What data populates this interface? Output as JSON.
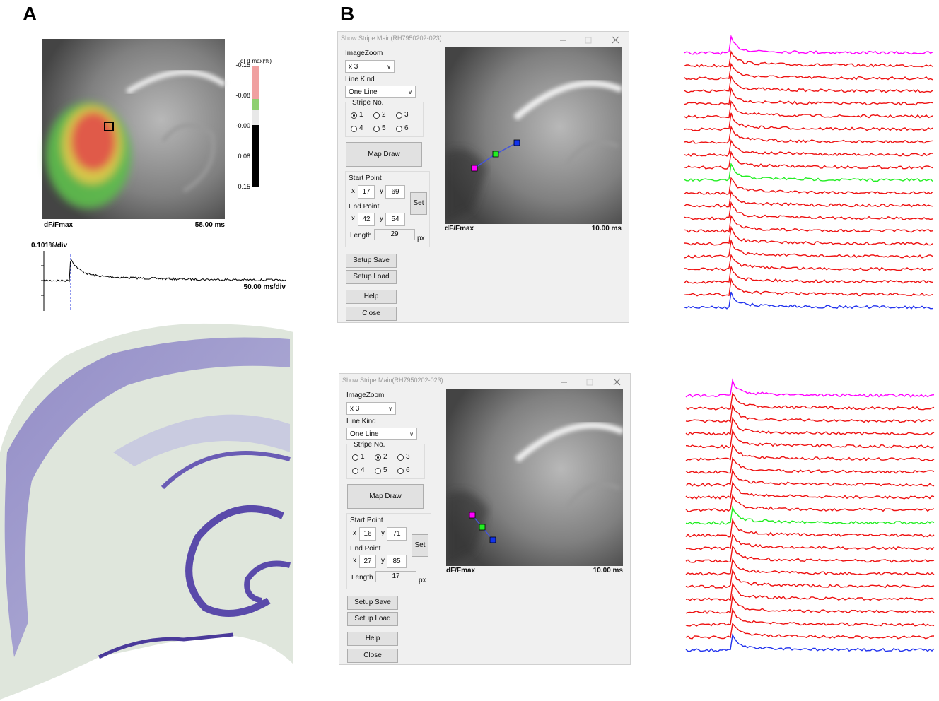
{
  "panel_a": {
    "label": "A",
    "colorbar": {
      "title": "dF/Fmax(%)",
      "ticks": [
        "-0.15",
        "-0.08",
        "-0.00",
        "0.08",
        "0.15"
      ]
    },
    "map": {
      "left": "dF/Fmax",
      "right": "58.00 ms"
    },
    "trace": {
      "scale": "0.101%/div",
      "time": "50.00 ms/div"
    }
  },
  "panel_b": {
    "label": "B",
    "windows": [
      {
        "title": "Show Stripe Main(RH7950202-023)",
        "image_zoom_label": "ImageZoom",
        "image_zoom": "x 3",
        "line_kind_label": "Line Kind",
        "line_kind": "One Line",
        "stripe_label": "Stripe No.",
        "stripes": [
          {
            "label": "1",
            "checked": true
          },
          {
            "label": "2",
            "checked": false
          },
          {
            "label": "3",
            "checked": false
          },
          {
            "label": "4",
            "checked": false
          },
          {
            "label": "5",
            "checked": false
          },
          {
            "label": "6",
            "checked": false
          }
        ],
        "map_draw": "Map Draw",
        "start_label": "Start Point",
        "start_x": "17",
        "start_y": "69",
        "end_label": "End Point",
        "end_x": "42",
        "end_y": "54",
        "x_label": "x",
        "y_label": "y",
        "set": "Set",
        "length_label": "Length",
        "length": "29",
        "unit": "px",
        "buttons": [
          "Setup Save",
          "Setup Load",
          "Help",
          "Close"
        ],
        "image_left": "dF/Fmax",
        "image_right": "10.00 ms"
      },
      {
        "title": "Show Stripe Main(RH7950202-023)",
        "image_zoom_label": "ImageZoom",
        "image_zoom": "x 3",
        "line_kind_label": "Line Kind",
        "line_kind": "One Line",
        "stripe_label": "Stripe No.",
        "stripes": [
          {
            "label": "1",
            "checked": false
          },
          {
            "label": "2",
            "checked": true
          },
          {
            "label": "3",
            "checked": false
          },
          {
            "label": "4",
            "checked": false
          },
          {
            "label": "5",
            "checked": false
          },
          {
            "label": "6",
            "checked": false
          }
        ],
        "map_draw": "Map Draw",
        "start_label": "Start Point",
        "start_x": "16",
        "start_y": "71",
        "end_label": "End Point",
        "end_x": "27",
        "end_y": "85",
        "x_label": "x",
        "y_label": "y",
        "set": "Set",
        "length_label": "Length",
        "length": "17",
        "unit": "px",
        "buttons": [
          "Setup Save",
          "Setup Load",
          "Help",
          "Close"
        ],
        "image_left": "dF/Fmax",
        "image_right": "10.00 ms"
      }
    ]
  }
}
